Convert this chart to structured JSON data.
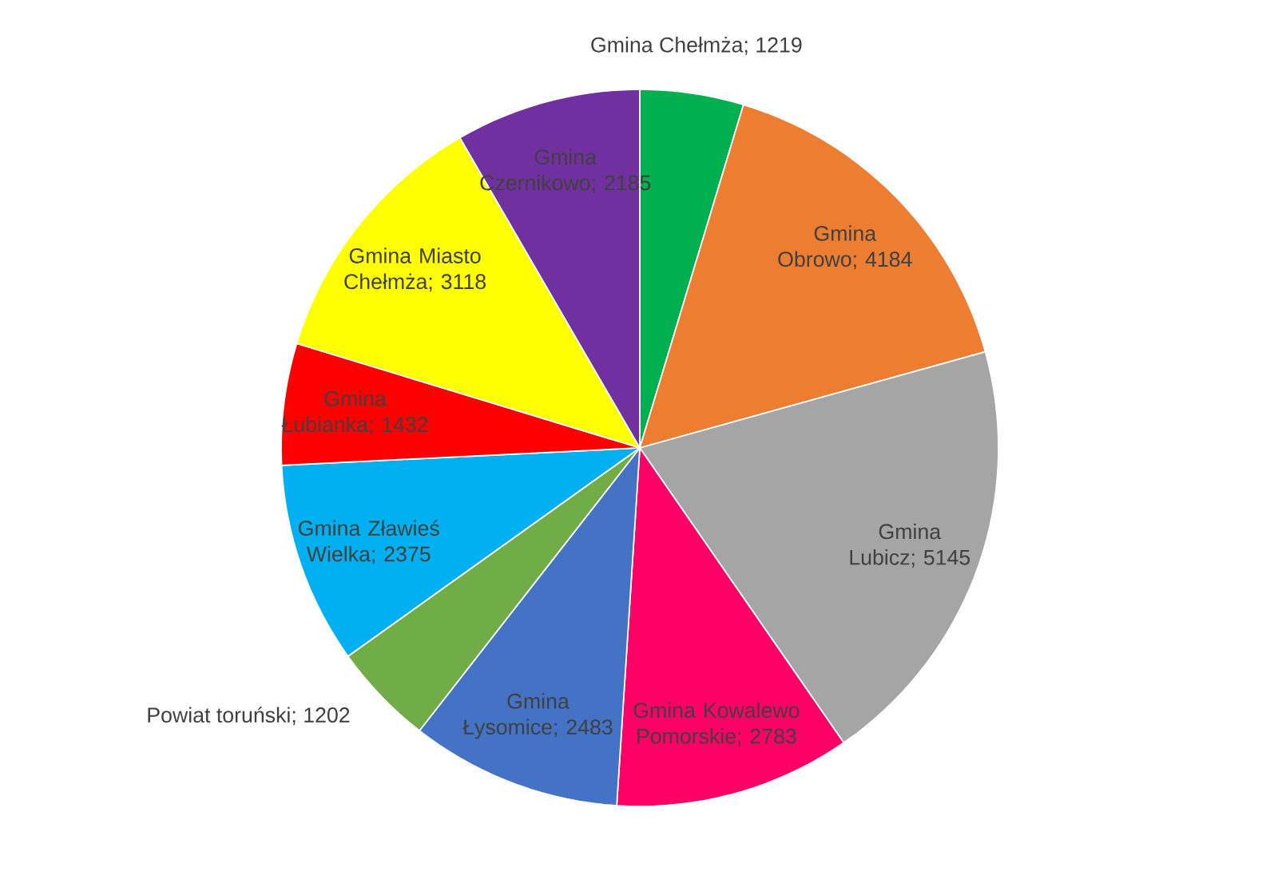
{
  "chart_data": {
    "type": "pie",
    "categories": [
      "Gmina Chełmża",
      "Gmina Obrowo",
      "Gmina Lubicz",
      "Gmina Kowalewo Pomorskie",
      "Gmina Łysomice",
      "Powiat toruński",
      "Gmina Zławieś Wielka",
      "Gmina Łubianka",
      "Gmina Miasto Chełmża",
      "Gmina Czernikowo"
    ],
    "values": [
      1219,
      4184,
      5145,
      2783,
      2483,
      1202,
      2375,
      1432,
      3118,
      2185
    ],
    "colors": [
      "#00b050",
      "#ed7d31",
      "#a5a5a5",
      "#ff0066",
      "#4472c4",
      "#70ad47",
      "#00b0f0",
      "#ff0000",
      "#ffff00",
      "#7030a0"
    ],
    "value_labels": [
      "; 1219",
      "; 4184",
      "; 5145",
      "; 2783",
      "; 2483",
      "; 1202",
      "; 2375",
      "; 1432",
      "; 3118",
      "; 2185"
    ],
    "legend": false
  }
}
